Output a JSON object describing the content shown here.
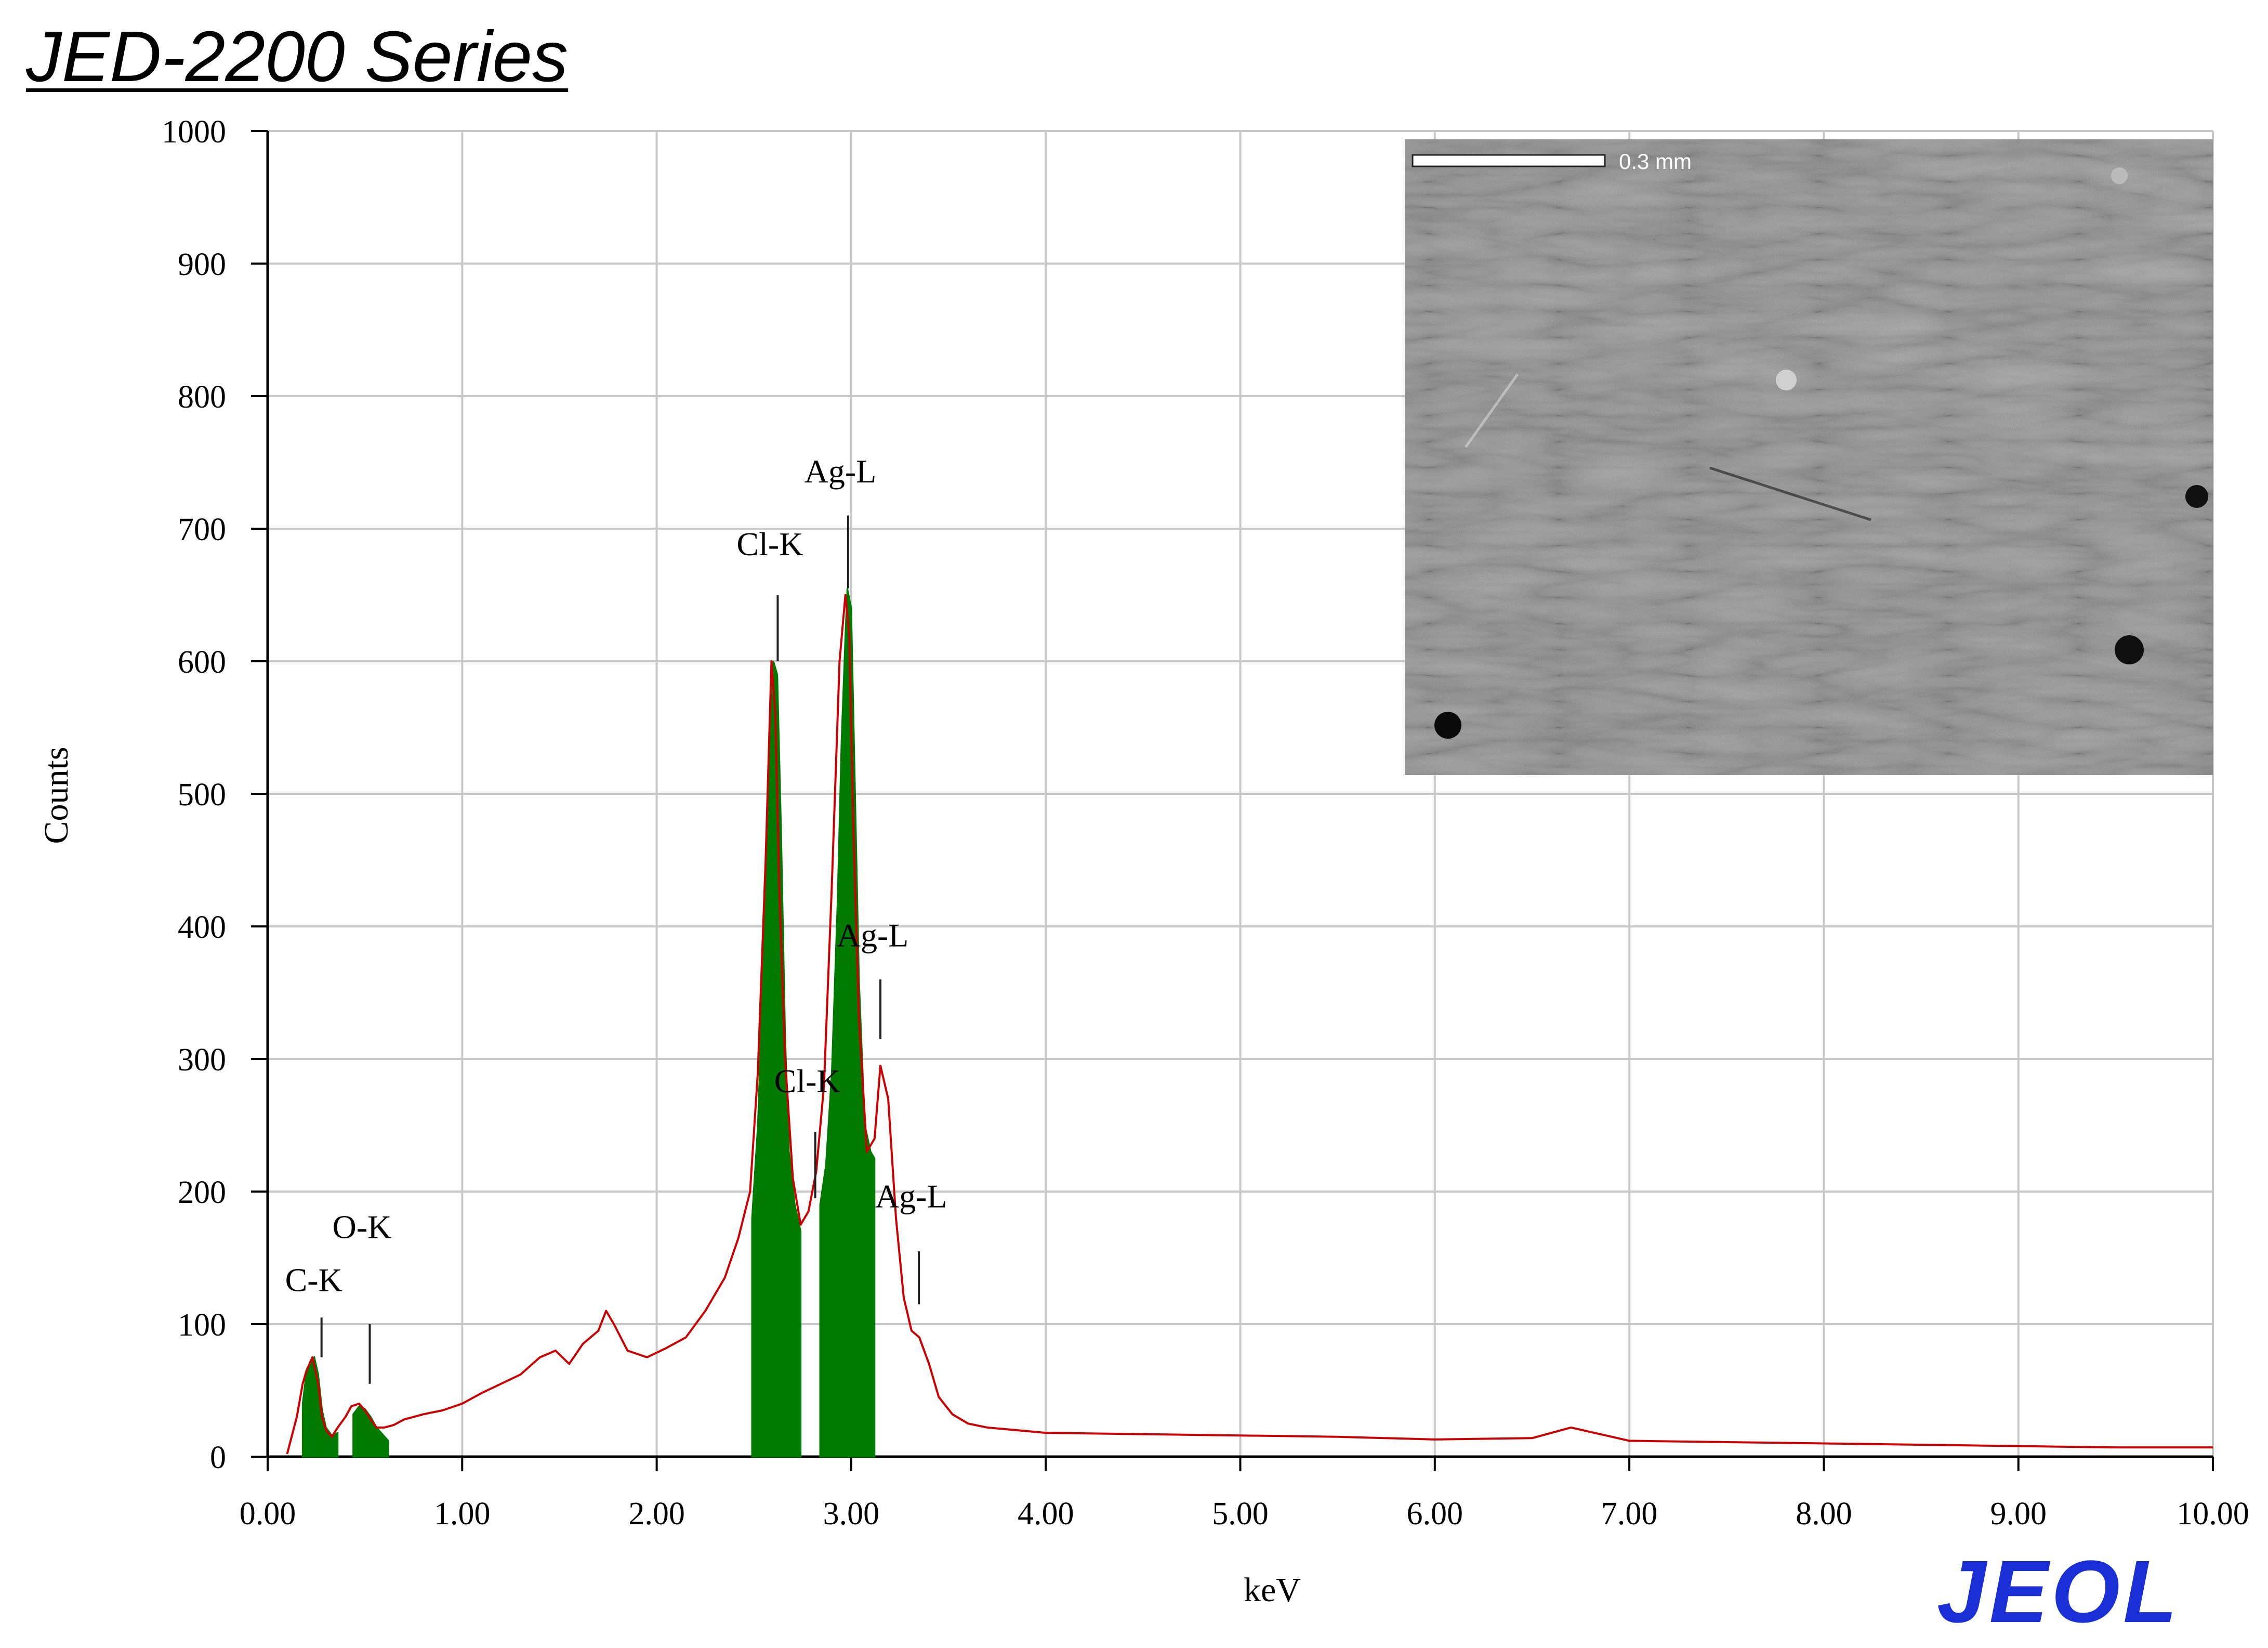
{
  "page": {
    "title": "JED-2200 Series",
    "logo": "JEOL"
  },
  "inset": {
    "type": "sem-micrograph",
    "scale_bar_label": "0.3 mm"
  },
  "colors": {
    "spectrum_line": "#cc0000",
    "peak_fill": "#007a00",
    "grid": "#c8c8c8",
    "logo": "#1a2fd6"
  },
  "chart_data": {
    "type": "line",
    "title": "",
    "xlabel": "keV",
    "ylabel": "Counts",
    "xlim": [
      0,
      10
    ],
    "ylim": [
      0,
      1000
    ],
    "grid": true,
    "xticks": [
      0,
      1,
      2,
      3,
      4,
      5,
      6,
      7,
      8,
      9,
      10
    ],
    "xtick_labels": [
      "0.00",
      "1.00",
      "2.00",
      "3.00",
      "4.00",
      "5.00",
      "6.00",
      "7.00",
      "8.00",
      "9.00",
      "10.00"
    ],
    "yticks": [
      0,
      100,
      200,
      300,
      400,
      500,
      600,
      700,
      800,
      900,
      1000
    ],
    "ytick_labels": [
      "0",
      "100",
      "200",
      "300",
      "400",
      "500",
      "600",
      "700",
      "800",
      "900",
      "1000"
    ],
    "series": [
      {
        "style": "line",
        "x": [
          0.1,
          0.15,
          0.18,
          0.2,
          0.23,
          0.26,
          0.28,
          0.3,
          0.33,
          0.36,
          0.4,
          0.43,
          0.47,
          0.5,
          0.53,
          0.56,
          0.6,
          0.65,
          0.7,
          0.8,
          0.9,
          1.0,
          1.1,
          1.2,
          1.3,
          1.4,
          1.48,
          1.55,
          1.62,
          1.7,
          1.74,
          1.78,
          1.85,
          1.95,
          2.05,
          2.15,
          2.25,
          2.35,
          2.42,
          2.48,
          2.52,
          2.56,
          2.59,
          2.61,
          2.63,
          2.66,
          2.7,
          2.74,
          2.78,
          2.82,
          2.86,
          2.9,
          2.94,
          2.97,
          2.99,
          3.01,
          3.04,
          3.08,
          3.12,
          3.15,
          3.19,
          3.23,
          3.27,
          3.31,
          3.35,
          3.4,
          3.45,
          3.52,
          3.6,
          3.7,
          3.85,
          4.0,
          4.5,
          5.0,
          5.5,
          6.0,
          6.5,
          6.7,
          7.0,
          7.5,
          8.0,
          8.5,
          9.0,
          9.5,
          10.0
        ],
        "y": [
          2,
          30,
          55,
          65,
          75,
          55,
          30,
          20,
          15,
          22,
          30,
          38,
          40,
          35,
          28,
          22,
          22,
          24,
          28,
          32,
          35,
          40,
          48,
          55,
          62,
          75,
          80,
          70,
          85,
          95,
          110,
          100,
          80,
          75,
          82,
          90,
          110,
          135,
          165,
          200,
          290,
          450,
          600,
          560,
          430,
          300,
          210,
          175,
          185,
          215,
          280,
          430,
          600,
          650,
          620,
          480,
          330,
          230,
          240,
          295,
          270,
          180,
          120,
          95,
          90,
          70,
          45,
          32,
          25,
          22,
          20,
          18,
          17,
          16,
          15,
          13,
          14,
          22,
          12,
          11,
          10,
          9,
          8,
          7,
          7
        ]
      },
      {
        "style": "filled-peaks",
        "regions": [
          {
            "x": [
              0.18,
              0.2,
              0.22,
              0.24,
              0.26,
              0.28,
              0.3,
              0.33,
              0.36
            ],
            "y": [
              40,
              65,
              72,
              75,
              62,
              35,
              22,
              16,
              18
            ]
          },
          {
            "x": [
              0.44,
              0.47,
              0.5,
              0.53,
              0.56,
              0.59,
              0.62
            ],
            "y": [
              32,
              38,
              36,
              30,
              22,
              17,
              12
            ]
          },
          {
            "x": [
              2.49,
              2.52,
              2.55,
              2.58,
              2.6,
              2.62,
              2.64,
              2.66,
              2.68,
              2.71,
              2.74
            ],
            "y": [
              180,
              250,
              380,
              520,
              600,
              590,
              470,
              320,
              230,
              190,
              170
            ]
          },
          {
            "x": [
              2.84,
              2.87,
              2.9,
              2.93,
              2.95,
              2.97,
              2.98,
              3.0,
              3.02,
              3.04,
              3.07,
              3.1,
              3.12
            ],
            "y": [
              190,
              220,
              290,
              420,
              540,
              620,
              655,
              640,
              500,
              360,
              250,
              230,
              225
            ]
          }
        ]
      }
    ],
    "annotations": [
      {
        "text": "C-K",
        "x": 0.277,
        "label_y": 125,
        "tick_top": 105,
        "tick_bottom": 75
      },
      {
        "text": "O-K",
        "x": 0.525,
        "label_y": 165,
        "tick_top": 100,
        "tick_bottom": 55
      },
      {
        "text": "Cl-K",
        "x": 2.622,
        "label_y": 680,
        "tick_top": 650,
        "tick_bottom": 600
      },
      {
        "text": "Ag-L",
        "x": 2.984,
        "label_y": 735,
        "tick_top": 710,
        "tick_bottom": 655
      },
      {
        "text": "Ag-L",
        "x": 3.15,
        "label_y": 385,
        "tick_top": 360,
        "tick_bottom": 315
      },
      {
        "text": "Cl-K",
        "x": 2.815,
        "label_y": 275,
        "tick_top": 245,
        "tick_bottom": 195
      },
      {
        "text": "Ag-L",
        "x": 3.348,
        "label_y": 188,
        "tick_top": 155,
        "tick_bottom": 115
      }
    ]
  }
}
